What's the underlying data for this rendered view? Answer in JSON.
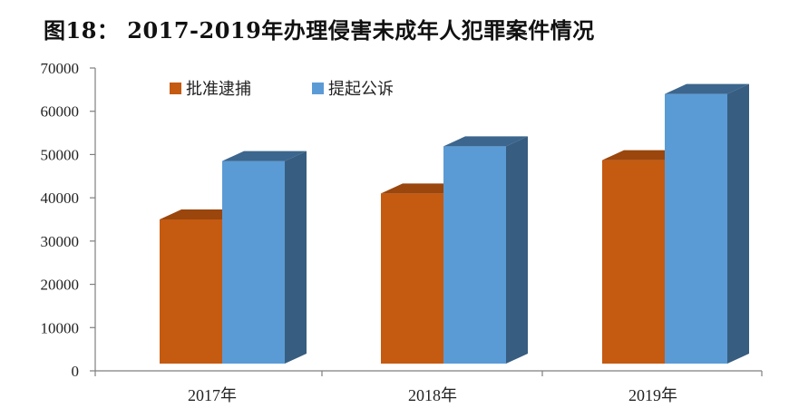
{
  "title": "图18： 2017-2019年办理侵害未成年人犯罪案件情况",
  "colors": {
    "series_0": "#C55A11",
    "series_1": "#5B9BD5"
  },
  "chart_data": {
    "type": "bar",
    "title": "图18： 2017-2019年办理侵害未成年人犯罪案件情况",
    "xlabel": "",
    "ylabel": "",
    "categories": [
      "2017年",
      "2018年",
      "2019年"
    ],
    "series": [
      {
        "name": "批准逮捕",
        "values": [
          35000,
          41000,
          48700
        ]
      },
      {
        "name": "提起公诉",
        "values": [
          48500,
          51900,
          64000
        ]
      }
    ],
    "ylim": [
      0,
      70000
    ],
    "yticks": [
      0,
      10000,
      20000,
      30000,
      40000,
      50000,
      60000,
      70000
    ],
    "grid": false,
    "legend": "top-left",
    "style": "3d-column"
  }
}
